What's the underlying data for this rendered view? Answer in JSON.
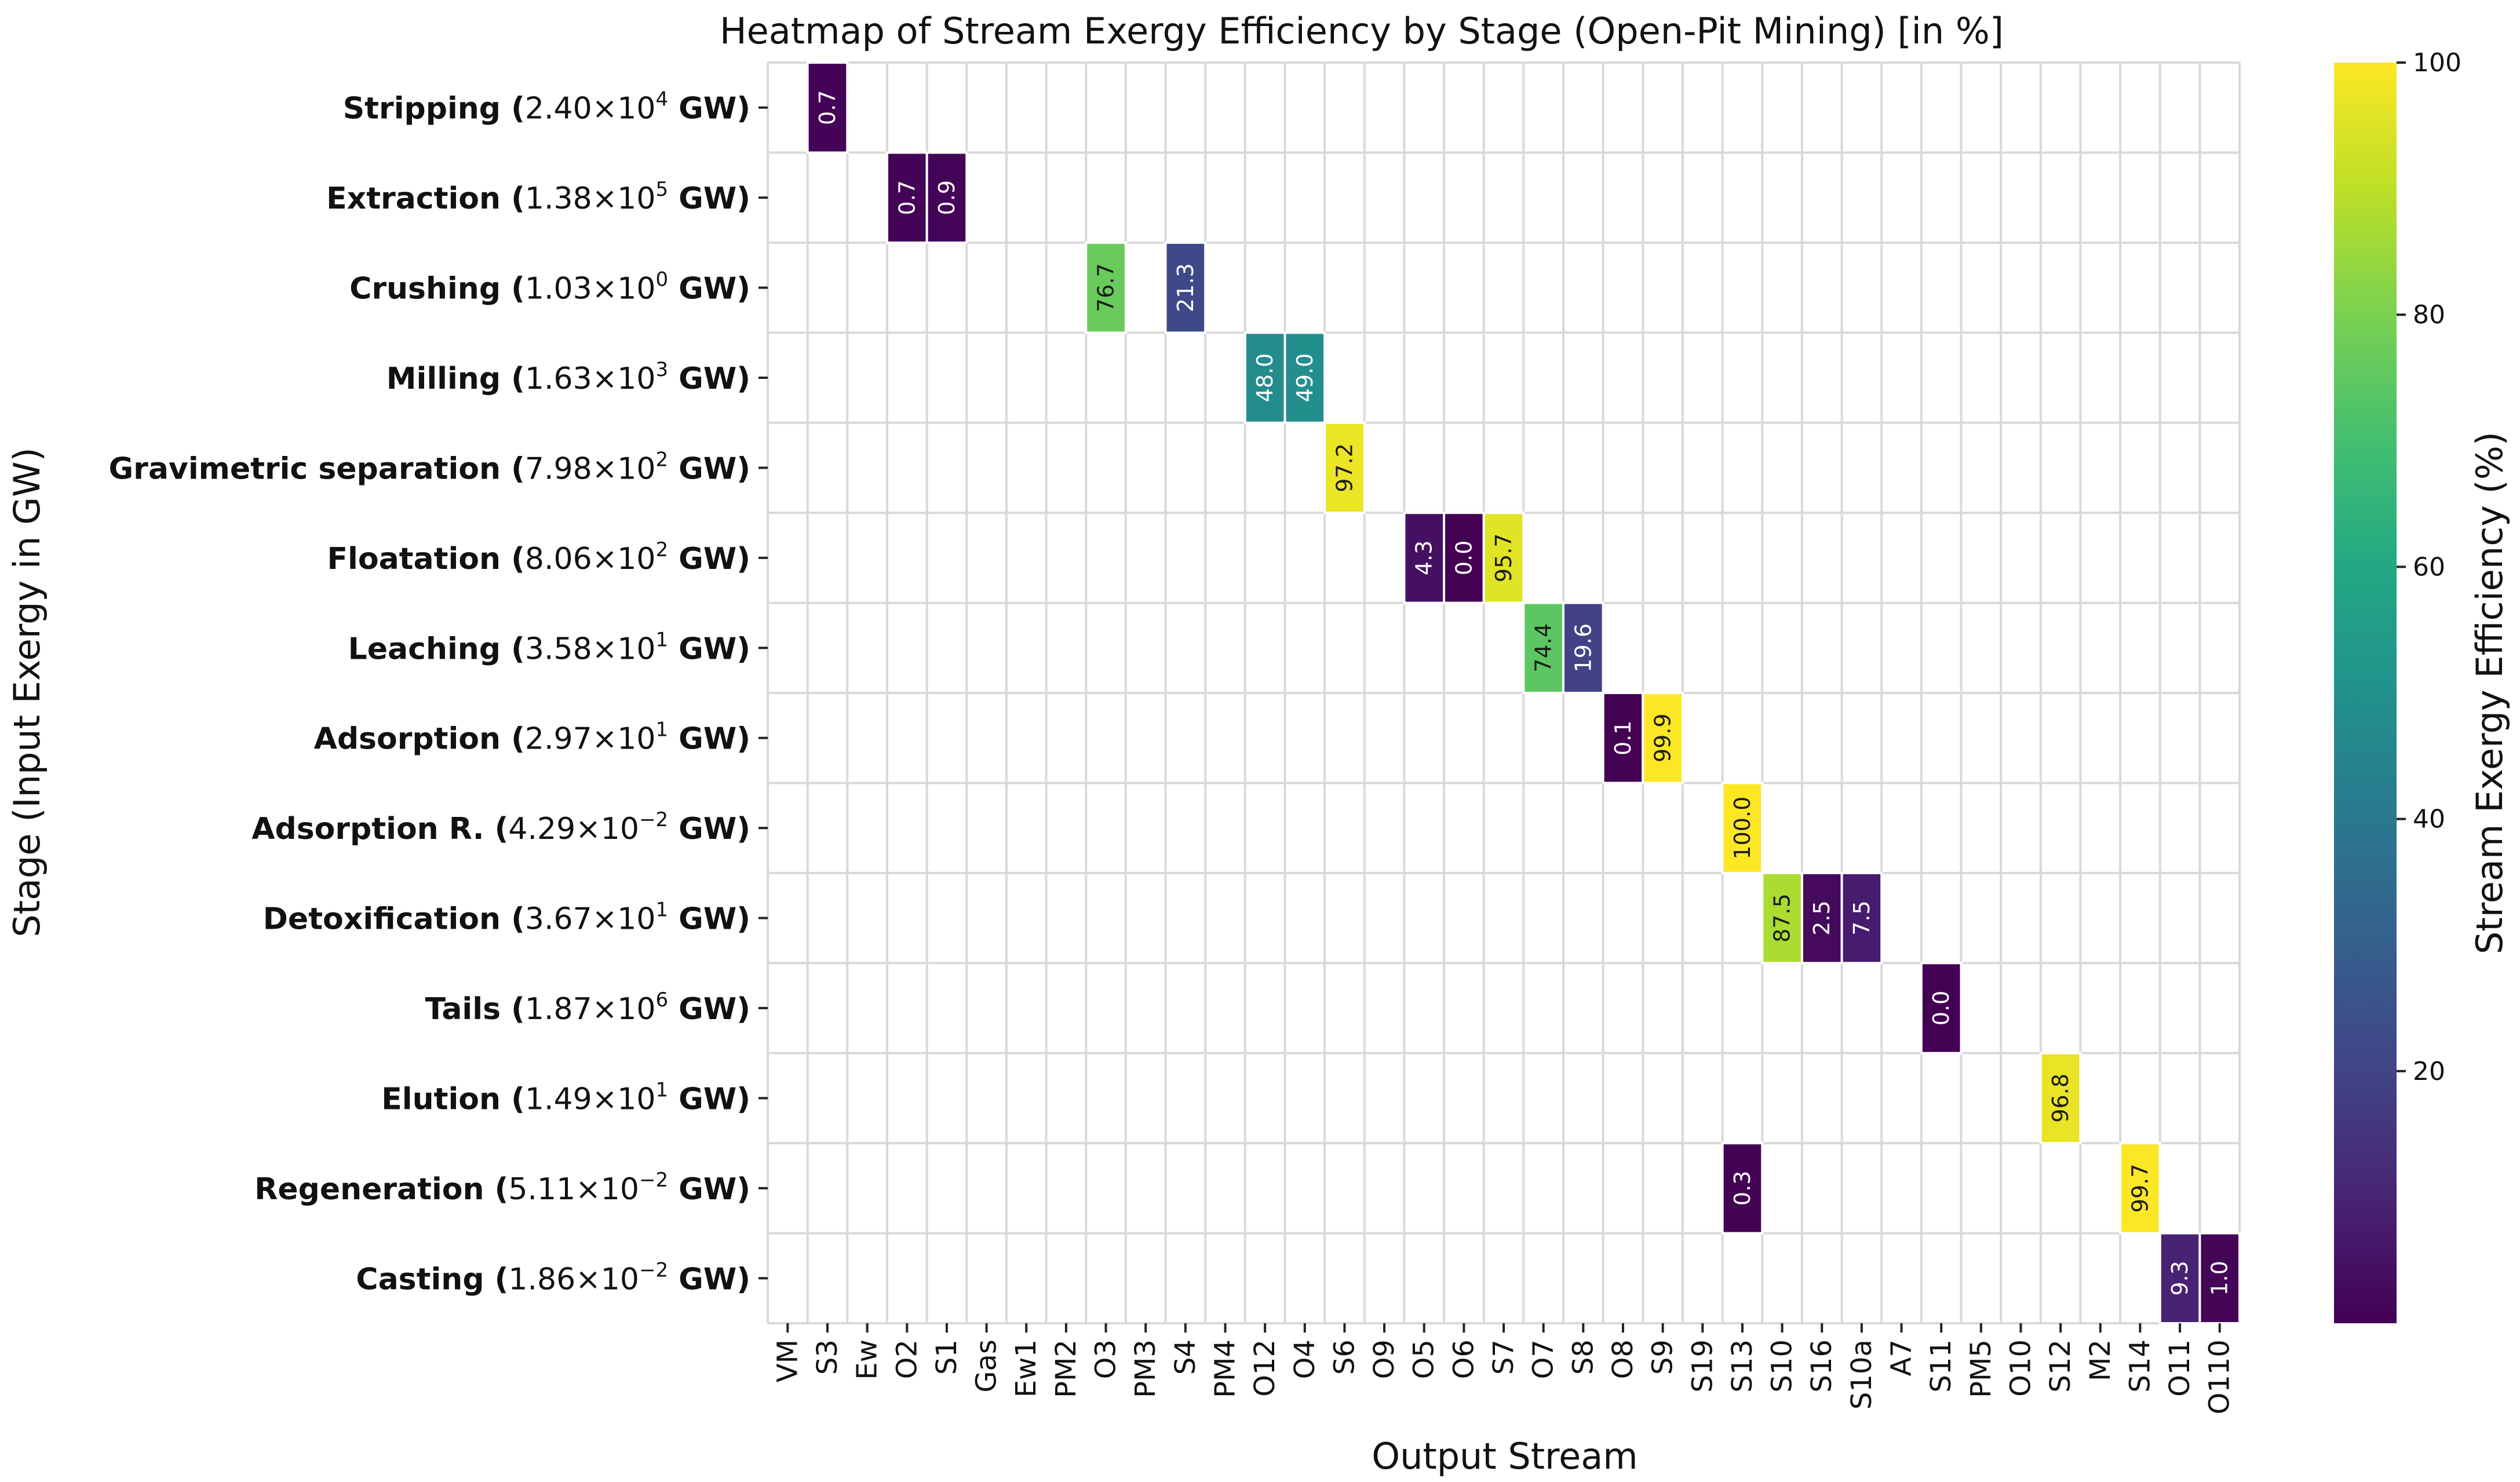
{
  "chart_data": {
    "type": "heatmap",
    "title": "Heatmap of Stream Exergy Efficiency by Stage (Open-Pit Mining) [in %]",
    "xlabel": "Output Stream",
    "ylabel": "Stage (Input Exergy in GW)",
    "colorbar_label": "Stream Exergy Efficiency (%)",
    "colorbar_range": [
      0,
      100
    ],
    "colorbar_ticks": [
      20,
      40,
      60,
      80,
      100
    ],
    "colormap": "viridis",
    "x_categories": [
      "VM",
      "S3",
      "Ew",
      "O2",
      "S1",
      "Gas",
      "Ew1",
      "PM2",
      "O3",
      "PM3",
      "S4",
      "PM4",
      "O12",
      "O4",
      "S6",
      "O9",
      "O5",
      "O6",
      "S7",
      "O7",
      "S8",
      "O8",
      "S9",
      "S19",
      "S13",
      "S10",
      "S16",
      "S10a",
      "A7",
      "S11",
      "PM5",
      "O10",
      "S12",
      "M2",
      "S14",
      "O11",
      "O110"
    ],
    "y_categories": [
      {
        "name": "Stripping",
        "mantissa": "2.40",
        "exponent": "4"
      },
      {
        "name": "Extraction",
        "mantissa": "1.38",
        "exponent": "5"
      },
      {
        "name": "Crushing",
        "mantissa": "1.03",
        "exponent": "0"
      },
      {
        "name": "Milling",
        "mantissa": "1.63",
        "exponent": "3"
      },
      {
        "name": "Gravimetric separation",
        "mantissa": "7.98",
        "exponent": "2"
      },
      {
        "name": "Floatation",
        "mantissa": "8.06",
        "exponent": "2"
      },
      {
        "name": "Leaching",
        "mantissa": "3.58",
        "exponent": "1"
      },
      {
        "name": "Adsorption",
        "mantissa": "2.97",
        "exponent": "1"
      },
      {
        "name": "Adsorption R.",
        "mantissa": "4.29",
        "exponent": "−2"
      },
      {
        "name": "Detoxification",
        "mantissa": "3.67",
        "exponent": "1"
      },
      {
        "name": "Tails",
        "mantissa": "1.87",
        "exponent": "6"
      },
      {
        "name": "Elution",
        "mantissa": "1.49",
        "exponent": "1"
      },
      {
        "name": "Regeneration",
        "mantissa": "5.11",
        "exponent": "−2"
      },
      {
        "name": "Casting",
        "mantissa": "1.86",
        "exponent": "−2"
      }
    ],
    "unit_label": "GW",
    "cells": [
      {
        "row": 0,
        "col": 1,
        "value": 0.7
      },
      {
        "row": 1,
        "col": 3,
        "value": 0.7
      },
      {
        "row": 1,
        "col": 4,
        "value": 0.9
      },
      {
        "row": 2,
        "col": 8,
        "value": 76.7
      },
      {
        "row": 2,
        "col": 10,
        "value": 21.3
      },
      {
        "row": 3,
        "col": 12,
        "value": 48.0
      },
      {
        "row": 3,
        "col": 13,
        "value": 49.0
      },
      {
        "row": 4,
        "col": 14,
        "value": 97.2
      },
      {
        "row": 5,
        "col": 16,
        "value": 4.3
      },
      {
        "row": 5,
        "col": 17,
        "value": 0.0
      },
      {
        "row": 5,
        "col": 18,
        "value": 95.7
      },
      {
        "row": 6,
        "col": 19,
        "value": 74.4
      },
      {
        "row": 6,
        "col": 20,
        "value": 19.6
      },
      {
        "row": 7,
        "col": 21,
        "value": 0.1
      },
      {
        "row": 7,
        "col": 22,
        "value": 99.9
      },
      {
        "row": 8,
        "col": 24,
        "value": 100.0
      },
      {
        "row": 9,
        "col": 25,
        "value": 87.5
      },
      {
        "row": 9,
        "col": 26,
        "value": 2.5
      },
      {
        "row": 9,
        "col": 27,
        "value": 7.5
      },
      {
        "row": 10,
        "col": 29,
        "value": 0.0
      },
      {
        "row": 11,
        "col": 32,
        "value": 96.8
      },
      {
        "row": 12,
        "col": 24,
        "value": 0.3
      },
      {
        "row": 12,
        "col": 34,
        "value": 99.7
      },
      {
        "row": 13,
        "col": 35,
        "value": 9.3
      },
      {
        "row": 13,
        "col": 36,
        "value": 1.0
      }
    ]
  }
}
